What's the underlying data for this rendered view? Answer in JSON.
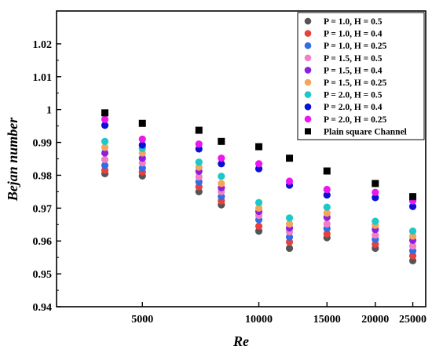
{
  "chart_data": {
    "type": "scatter",
    "xscale": "log",
    "xlabel": "Re",
    "ylabel": "Bejan number",
    "xlim": [
      3000,
      27000
    ],
    "ylim": [
      0.94,
      1.03
    ],
    "x_ticks": [
      5000,
      10000,
      15000,
      20000,
      25000
    ],
    "x_tick_labels": [
      "5000",
      "10000",
      "15000",
      "20000",
      "25000"
    ],
    "y_ticks": [
      0.94,
      0.95,
      0.96,
      0.97,
      0.98,
      0.99,
      1.0,
      1.01,
      1.02
    ],
    "y_tick_labels": [
      "0.94",
      "0.95",
      "0.96",
      "0.97",
      "0.98",
      "0.99",
      "1",
      "1.01",
      "1.02"
    ],
    "legend_position": "top-right",
    "grid": false,
    "x": [
      4000,
      5000,
      7000,
      8000,
      10000,
      12000,
      15000,
      20000,
      25000
    ],
    "series": [
      {
        "name": "P = 1.0, H = 0.5",
        "marker": "circle",
        "color": "#555555",
        "values": [
          0.9805,
          0.9798,
          0.975,
          0.971,
          0.963,
          0.9578,
          0.961,
          0.9578,
          0.954
        ]
      },
      {
        "name": "P = 1.0, H = 0.4",
        "marker": "circle",
        "color": "#e8413c",
        "values": [
          0.9815,
          0.981,
          0.9765,
          0.9722,
          0.9645,
          0.9597,
          0.9622,
          0.959,
          0.9555
        ]
      },
      {
        "name": "P = 1.0, H = 0.25",
        "marker": "circle",
        "color": "#2f6ee5",
        "values": [
          0.983,
          0.9822,
          0.978,
          0.9735,
          0.9665,
          0.9612,
          0.9638,
          0.9605,
          0.957
        ]
      },
      {
        "name": "P = 1.5, H = 0.5",
        "marker": "circle",
        "color": "#f07fc4",
        "values": [
          0.9848,
          0.9838,
          0.9795,
          0.975,
          0.9678,
          0.9628,
          0.9652,
          0.9618,
          0.9585
        ]
      },
      {
        "name": "P = 1.5, H = 0.4",
        "marker": "circle",
        "color": "#8f1fe0",
        "values": [
          0.9868,
          0.9852,
          0.9812,
          0.9762,
          0.969,
          0.964,
          0.9672,
          0.9635,
          0.9602
        ]
      },
      {
        "name": "P = 1.5, H = 0.25",
        "marker": "circle",
        "color": "#f5a55a",
        "values": [
          0.9885,
          0.9868,
          0.9825,
          0.9775,
          0.97,
          0.9652,
          0.9685,
          0.9648,
          0.9615
        ]
      },
      {
        "name": "P = 2.0, H = 0.5",
        "marker": "circle",
        "color": "#1cc8c8",
        "values": [
          0.9903,
          0.9882,
          0.984,
          0.9797,
          0.9717,
          0.967,
          0.9703,
          0.966,
          0.963
        ]
      },
      {
        "name": "P = 2.0, H = 0.4",
        "marker": "circle",
        "color": "#0a10d8",
        "values": [
          0.9952,
          0.9892,
          0.988,
          0.9835,
          0.982,
          0.977,
          0.974,
          0.9732,
          0.9705
        ]
      },
      {
        "name": "P = 2.0, H = 0.25",
        "marker": "circle",
        "color": "#ee16ee",
        "values": [
          0.997,
          0.991,
          0.9895,
          0.9852,
          0.9835,
          0.9782,
          0.9757,
          0.9748,
          0.9722
        ]
      },
      {
        "name": "Plain square Channel",
        "marker": "square",
        "color": "#000000",
        "values": [
          0.999,
          0.9958,
          0.9937,
          0.9903,
          0.9887,
          0.9852,
          0.9813,
          0.9775,
          0.9735
        ]
      }
    ]
  }
}
